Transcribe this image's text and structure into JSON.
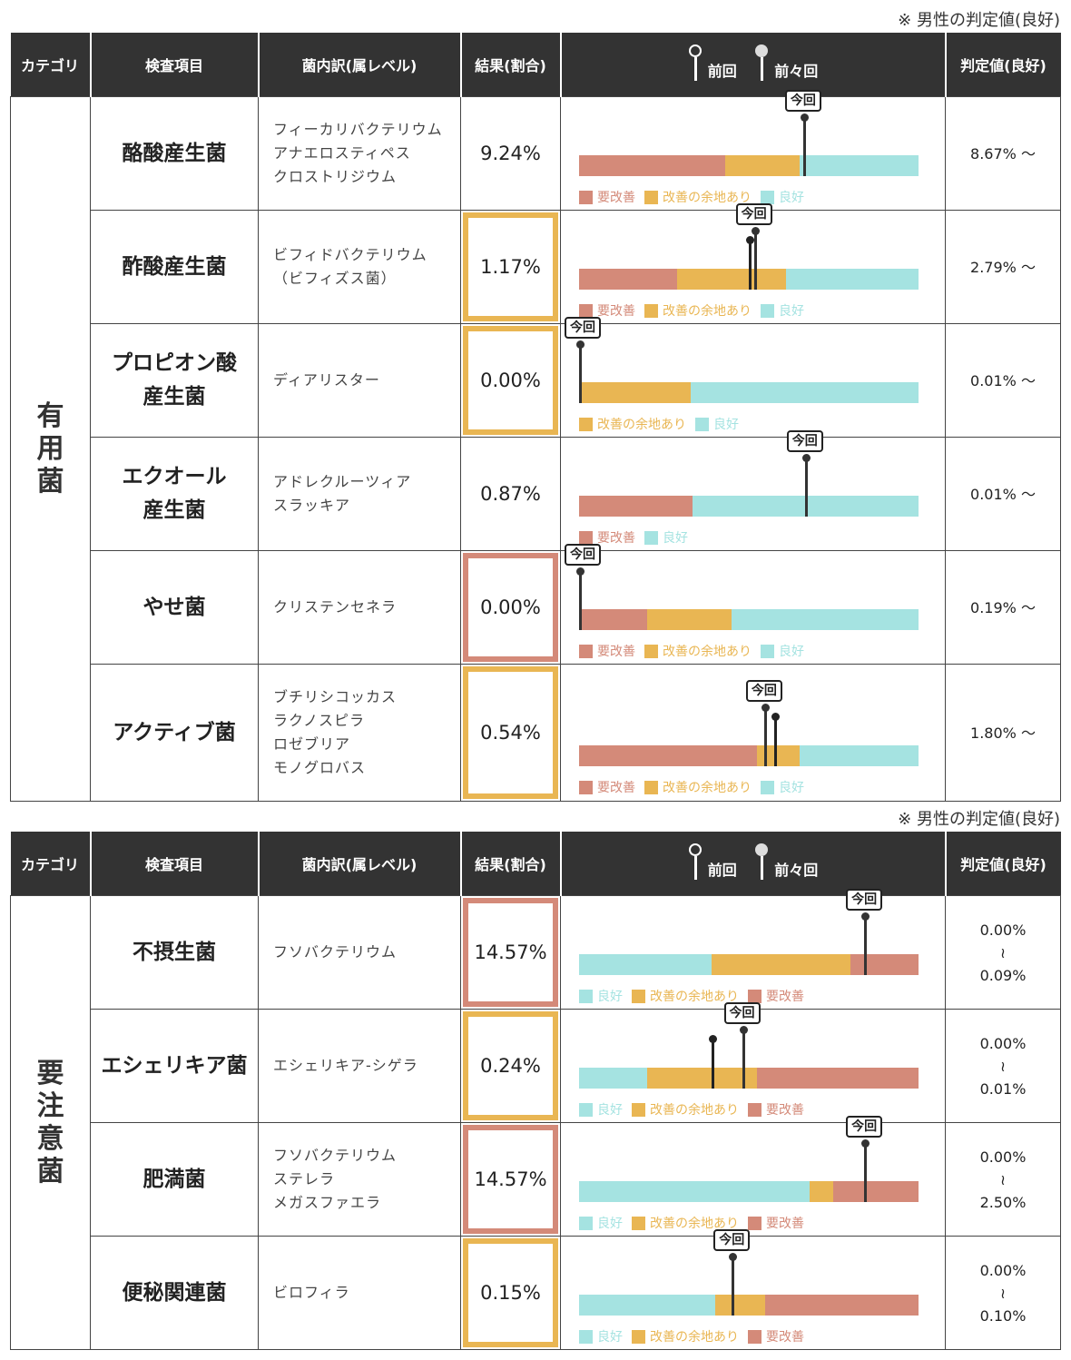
{
  "colors": {
    "bad": "#d48a79",
    "mid": "#e9b653",
    "good": "#a5e3e1",
    "header": "#333333"
  },
  "note": "※ 男性の判定値(良好)",
  "headers": {
    "category": "カテゴリ",
    "item": "検査項目",
    "breakdown": "菌内訳(属レベル)",
    "result": "結果(割合)",
    "prev": "前回",
    "prev2": "前々回",
    "judge": "判定値(良好)"
  },
  "labels": {
    "bad": "要改善",
    "mid": "改善の余地あり",
    "good": "良好",
    "now": "今回"
  },
  "beneficial": {
    "category": "有用菌",
    "rows": [
      {
        "item": "酪酸産生菌",
        "breakdown": [
          "フィーカリバクテリウム",
          "アナエロスティペス",
          "クロストリジウム"
        ],
        "result": "9.24%",
        "status": "good",
        "judge": "8.67% ～"
      },
      {
        "item": "酢酸産生菌",
        "breakdown": [
          "ビフィドバクテリウム",
          "（ビフィズス菌）"
        ],
        "result": "1.17%",
        "status": "mid",
        "judge": "2.79% ～"
      },
      {
        "item": [
          "プロピオン酸",
          "産生菌"
        ],
        "breakdown": [
          "ディアリスター"
        ],
        "result": "0.00%",
        "status": "mid",
        "judge": "0.01% ～"
      },
      {
        "item": [
          "エクオール",
          "産生菌"
        ],
        "breakdown": [
          "アドレクルーツィア",
          "スラッキア"
        ],
        "result": "0.87%",
        "status": "good",
        "judge": "0.01% ～"
      },
      {
        "item": "やせ菌",
        "breakdown": [
          "クリステンセネラ"
        ],
        "result": "0.00%",
        "status": "bad",
        "judge": "0.19% ～"
      },
      {
        "item": "アクティブ菌",
        "breakdown": [
          "ブチリシコッカス",
          "ラクノスピラ",
          "ロゼブリア",
          "モノグロバス"
        ],
        "result": "0.54%",
        "status": "mid",
        "judge": "1.80% ～"
      }
    ]
  },
  "caution": {
    "category": "要注意菌",
    "rows": [
      {
        "item": "不摂生菌",
        "breakdown": [
          "フソバクテリウム"
        ],
        "result": "14.57%",
        "status": "bad",
        "judge": [
          "0.00%",
          "≀",
          "0.09%"
        ]
      },
      {
        "item": "エシェリキア菌",
        "breakdown": [
          "エシェリキア-シゲラ"
        ],
        "result": "0.24%",
        "status": "mid",
        "judge": [
          "0.00%",
          "≀",
          "0.01%"
        ]
      },
      {
        "item": "肥満菌",
        "breakdown": [
          "フソバクテリウム",
          "ステレラ",
          "メガスファエラ"
        ],
        "result": "14.57%",
        "status": "bad",
        "judge": [
          "0.00%",
          "≀",
          "2.50%"
        ]
      },
      {
        "item": "便秘関連菌",
        "breakdown": [
          "ビロフィラ"
        ],
        "result": "0.15%",
        "status": "mid",
        "judge": [
          "0.00%",
          "≀",
          "0.10%"
        ]
      }
    ]
  }
}
